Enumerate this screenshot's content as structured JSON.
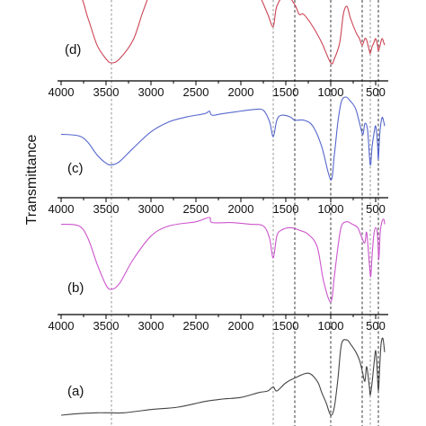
{
  "chart_data": {
    "type": "line",
    "title": "",
    "xlabel": "",
    "ylabel": "Transmittance",
    "x_reversed": true,
    "xlim": [
      4000,
      400
    ],
    "x_ticks": [
      4000,
      3500,
      3000,
      2500,
      2000,
      1500,
      1000,
      500
    ],
    "x_tick_labels": [
      "4000",
      "3500",
      "3000",
      "2500",
      "2000",
      "1500",
      "1000",
      "500"
    ],
    "reference_lines": [
      3440,
      1640,
      1400,
      1000,
      650,
      560,
      470
    ],
    "series": [
      {
        "name": "(a)",
        "color": "#444444",
        "points": [
          [
            4000,
            1
          ],
          [
            3800,
            0.98
          ],
          [
            3600,
            0.97
          ],
          [
            3500,
            0.97
          ],
          [
            3440,
            0.97
          ],
          [
            3300,
            0.97
          ],
          [
            3000,
            0.93
          ],
          [
            2700,
            0.9
          ],
          [
            2400,
            0.83
          ],
          [
            2200,
            0.8
          ],
          [
            2000,
            0.78
          ],
          [
            1800,
            0.72
          ],
          [
            1700,
            0.7
          ],
          [
            1640,
            0.65
          ],
          [
            1600,
            0.7
          ],
          [
            1500,
            0.6
          ],
          [
            1400,
            0.54
          ],
          [
            1250,
            0.48
          ],
          [
            1150,
            0.58
          ],
          [
            1100,
            0.72
          ],
          [
            1050,
            0.85
          ],
          [
            1000,
            1.0
          ],
          [
            960,
            0.9
          ],
          [
            920,
            0.55
          ],
          [
            880,
            0.12
          ],
          [
            820,
            0.07
          ],
          [
            780,
            0.12
          ],
          [
            720,
            0.22
          ],
          [
            680,
            0.32
          ],
          [
            650,
            0.45
          ],
          [
            620,
            0.58
          ],
          [
            600,
            0.4
          ],
          [
            570,
            0.65
          ],
          [
            560,
            0.75
          ],
          [
            540,
            0.6
          ],
          [
            520,
            0.38
          ],
          [
            500,
            0.2
          ],
          [
            485,
            0.4
          ],
          [
            470,
            0.7
          ],
          [
            455,
            0.4
          ],
          [
            440,
            0.12
          ],
          [
            420,
            0.05
          ],
          [
            400,
            0.22
          ]
        ]
      },
      {
        "name": "(b)",
        "color": "#cc55cc",
        "points": [
          [
            4000,
            0.08
          ],
          [
            3800,
            0.1
          ],
          [
            3700,
            0.25
          ],
          [
            3600,
            0.55
          ],
          [
            3500,
            0.8
          ],
          [
            3440,
            0.85
          ],
          [
            3350,
            0.78
          ],
          [
            3200,
            0.5
          ],
          [
            3000,
            0.22
          ],
          [
            2800,
            0.1
          ],
          [
            2500,
            0.05
          ],
          [
            2350,
            0.0
          ],
          [
            2320,
            0.06
          ],
          [
            2100,
            0.06
          ],
          [
            1900,
            0.08
          ],
          [
            1750,
            0.1
          ],
          [
            1680,
            0.25
          ],
          [
            1640,
            0.48
          ],
          [
            1600,
            0.22
          ],
          [
            1550,
            0.15
          ],
          [
            1450,
            0.12
          ],
          [
            1350,
            0.15
          ],
          [
            1250,
            0.2
          ],
          [
            1150,
            0.35
          ],
          [
            1080,
            0.75
          ],
          [
            1000,
            1.0
          ],
          [
            960,
            0.7
          ],
          [
            920,
            0.35
          ],
          [
            880,
            0.1
          ],
          [
            820,
            0.05
          ],
          [
            760,
            0.08
          ],
          [
            700,
            0.12
          ],
          [
            650,
            0.25
          ],
          [
            620,
            0.3
          ],
          [
            600,
            0.18
          ],
          [
            570,
            0.55
          ],
          [
            555,
            0.7
          ],
          [
            540,
            0.45
          ],
          [
            520,
            0.2
          ],
          [
            500,
            0.12
          ],
          [
            480,
            0.2
          ],
          [
            465,
            0.5
          ],
          [
            450,
            0.18
          ],
          [
            430,
            0.05
          ],
          [
            410,
            0.02
          ],
          [
            400,
            0.08
          ]
        ]
      },
      {
        "name": "(c)",
        "color": "#5566cc",
        "points": [
          [
            4000,
            0.45
          ],
          [
            3800,
            0.47
          ],
          [
            3700,
            0.55
          ],
          [
            3600,
            0.7
          ],
          [
            3500,
            0.8
          ],
          [
            3440,
            0.82
          ],
          [
            3350,
            0.78
          ],
          [
            3200,
            0.62
          ],
          [
            3000,
            0.42
          ],
          [
            2800,
            0.3
          ],
          [
            2600,
            0.24
          ],
          [
            2400,
            0.2
          ],
          [
            2350,
            0.17
          ],
          [
            2320,
            0.22
          ],
          [
            2200,
            0.2
          ],
          [
            2000,
            0.17
          ],
          [
            1850,
            0.15
          ],
          [
            1750,
            0.16
          ],
          [
            1680,
            0.3
          ],
          [
            1640,
            0.48
          ],
          [
            1600,
            0.28
          ],
          [
            1550,
            0.22
          ],
          [
            1450,
            0.24
          ],
          [
            1400,
            0.28
          ],
          [
            1300,
            0.28
          ],
          [
            1200,
            0.35
          ],
          [
            1100,
            0.6
          ],
          [
            1000,
            1.0
          ],
          [
            960,
            0.7
          ],
          [
            920,
            0.3
          ],
          [
            880,
            0.05
          ],
          [
            830,
            0.0
          ],
          [
            780,
            0.05
          ],
          [
            720,
            0.15
          ],
          [
            660,
            0.4
          ],
          [
            640,
            0.45
          ],
          [
            620,
            0.32
          ],
          [
            590,
            0.4
          ],
          [
            560,
            0.82
          ],
          [
            540,
            0.6
          ],
          [
            520,
            0.45
          ],
          [
            500,
            0.35
          ],
          [
            480,
            0.55
          ],
          [
            470,
            0.75
          ],
          [
            455,
            0.45
          ],
          [
            430,
            0.25
          ],
          [
            410,
            0.3
          ],
          [
            400,
            0.35
          ]
        ]
      },
      {
        "name": "(d)",
        "color": "#cc4455",
        "points": [
          [
            4000,
            0.1
          ],
          [
            3800,
            0.15
          ],
          [
            3700,
            0.45
          ],
          [
            3600,
            0.78
          ],
          [
            3500,
            0.95
          ],
          [
            3440,
            1.0
          ],
          [
            3350,
            0.95
          ],
          [
            3200,
            0.72
          ],
          [
            3100,
            0.4
          ],
          [
            3000,
            0.1
          ],
          [
            2950,
            0.0
          ],
          [
            2000,
            0.0
          ],
          [
            1900,
            0.0
          ],
          [
            1800,
            0.15
          ],
          [
            1700,
            0.4
          ],
          [
            1640,
            0.55
          ],
          [
            1600,
            0.3
          ],
          [
            1500,
            0.15
          ],
          [
            1400,
            0.28
          ],
          [
            1350,
            0.4
          ],
          [
            1300,
            0.4
          ],
          [
            1200,
            0.55
          ],
          [
            1100,
            0.75
          ],
          [
            1000,
            1.0
          ],
          [
            960,
            0.95
          ],
          [
            900,
            0.75
          ],
          [
            860,
            0.4
          ],
          [
            820,
            0.3
          ],
          [
            780,
            0.45
          ],
          [
            720,
            0.62
          ],
          [
            680,
            0.7
          ],
          [
            650,
            0.78
          ],
          [
            620,
            0.7
          ],
          [
            600,
            0.72
          ],
          [
            570,
            0.85
          ],
          [
            560,
            0.88
          ],
          [
            540,
            0.8
          ],
          [
            520,
            0.75
          ],
          [
            500,
            0.7
          ],
          [
            480,
            0.78
          ],
          [
            470,
            0.85
          ],
          [
            455,
            0.8
          ],
          [
            430,
            0.7
          ],
          [
            410,
            0.75
          ],
          [
            400,
            0.78
          ]
        ]
      }
    ]
  }
}
